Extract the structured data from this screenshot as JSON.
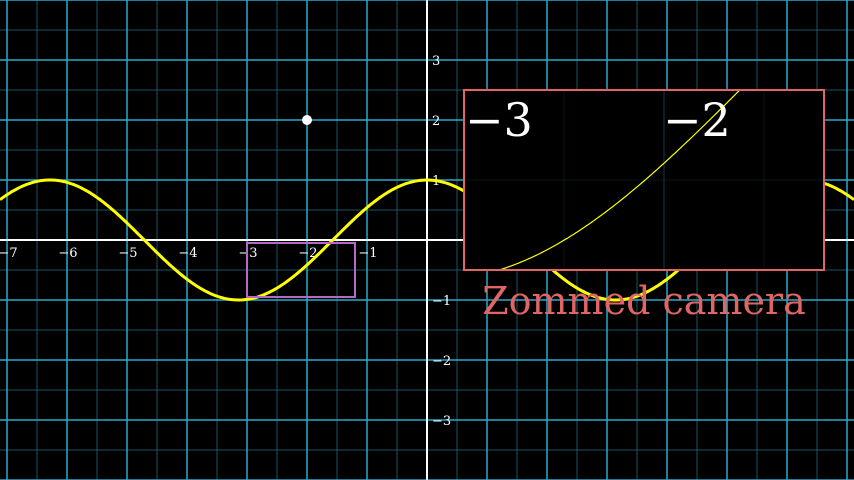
{
  "plane": {
    "x_range": [
      -7,
      7
    ],
    "y_range": [
      -4,
      4
    ],
    "x_tick_labels": [
      "-7",
      "-6",
      "-5",
      "-4",
      "-3",
      "-2",
      "-1"
    ],
    "y_tick_labels": [
      "3",
      "2",
      "1",
      "-1",
      "-2",
      "-3"
    ],
    "grid": true,
    "colors": {
      "background": "#000000",
      "major_grid": "#29abca",
      "minor_grid": "#1a5566",
      "axes": "#ffffff",
      "curve": "#ffff00"
    }
  },
  "curve": {
    "function": "cos(x)",
    "color": "#ffff00"
  },
  "dot": {
    "x": -2,
    "y": 2,
    "color": "#ffffff"
  },
  "zoom_frame": {
    "x_range": [
      -3,
      -1.2
    ],
    "y_range": [
      -0.95,
      -0.05
    ],
    "color": "#b66ac4"
  },
  "zoomed_display": {
    "color": "#e06666",
    "labels": [
      "−3",
      "−2"
    ],
    "caption": "Zommed camera"
  }
}
